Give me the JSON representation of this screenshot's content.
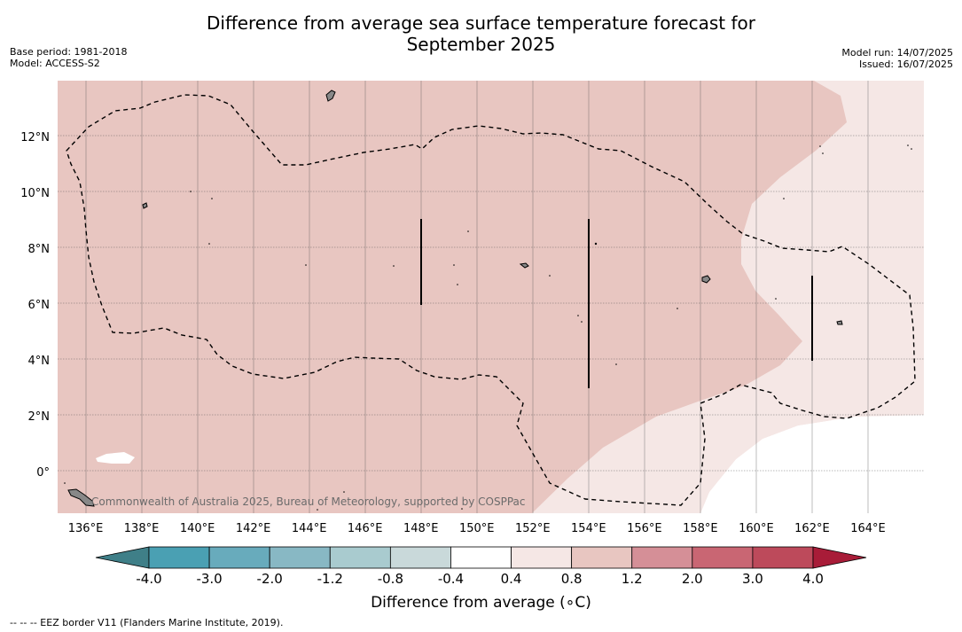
{
  "title_line1": "Difference from average sea surface temperature forecast for",
  "title_line2": "September 2025",
  "base_period": "Base period: 1981-2018",
  "model": "Model: ACCESS-S2",
  "model_run": "Model run: 14/07/2025",
  "issued": "Issued: 16/07/2025",
  "copyright": "Commonwealth of Australia 2025, Bureau of Meteorology, supported by COSPPac",
  "footnote": "--  --  -- EEZ border V11 (Flanders Marine Institute, 2019).",
  "colorbar": {
    "label": "Difference from average (∘C)",
    "tick_labels": [
      "-4.0",
      "-3.0",
      "-2.0",
      "-1.2",
      "-0.8",
      "-0.4",
      "0.4",
      "0.8",
      "1.2",
      "2.0",
      "3.0",
      "4.0"
    ],
    "colors": [
      "#3f7f88",
      "#4aa0b3",
      "#68abbc",
      "#88b8c4",
      "#a9cbcf",
      "#c9d9da",
      "#ffffff",
      "#f5e7e5",
      "#e8c6c1",
      "#d58f97",
      "#c96673",
      "#bd4a5b",
      "#a81c38"
    ]
  },
  "map": {
    "lon_range": [
      135,
      166
    ],
    "lat_range": [
      -1.5,
      14
    ],
    "lon_tick_labels": [
      "136°E",
      "138°E",
      "140°E",
      "142°E",
      "144°E",
      "146°E",
      "148°E",
      "150°E",
      "152°E",
      "154°E",
      "156°E",
      "158°E",
      "160°E",
      "162°E",
      "164°E"
    ],
    "lat_tick_labels": [
      "12°N",
      "10°N",
      "8°N",
      "6°N",
      "4°N",
      "2°N",
      "0°"
    ],
    "anomaly_fill_colors": {
      "0.8_to_1.2": "#e8c6c1",
      "0.4_to_0.8": "#f5e7e5",
      "-0.4_to_0.4": "#ffffff"
    },
    "eez_line_style": "dashed"
  }
}
